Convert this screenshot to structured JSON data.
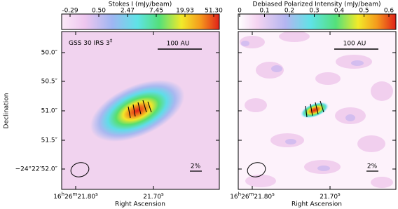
{
  "panels": [
    {
      "title": "Stokes I (mJy/beam)",
      "colorbar_ticks": [
        "-0.29",
        "0.50",
        "2.47",
        "7.45",
        "19.93",
        "51.30"
      ],
      "source": "GSS 30 IRS 3",
      "source_sup": "‡",
      "scale_bar": "100 AU",
      "vector_scale": "2%",
      "x_ticks": [
        [
          "16",
          "h",
          "26",
          "m",
          "21.80",
          "s"
        ],
        [
          "21.70",
          "s"
        ]
      ],
      "x_label": "Right Ascension"
    },
    {
      "title": "Debiased Polarized Intensity (mJy/beam)",
      "colorbar_ticks": [
        "0",
        "0.1",
        "0.2",
        "0.3",
        "0.4",
        "0.5",
        "0.6"
      ],
      "scale_bar": "100 AU",
      "vector_scale": "2%",
      "x_ticks": [
        [
          "16",
          "h",
          "26",
          "m",
          "21.80",
          "s"
        ],
        [
          "21.70",
          "s"
        ]
      ],
      "x_label": "Right Ascension"
    }
  ],
  "y_label": "Declination",
  "y_ticks": [
    "50.0″",
    "50.5″",
    "51.0″",
    "51.5″",
    "−24°22′52.0″"
  ]
}
